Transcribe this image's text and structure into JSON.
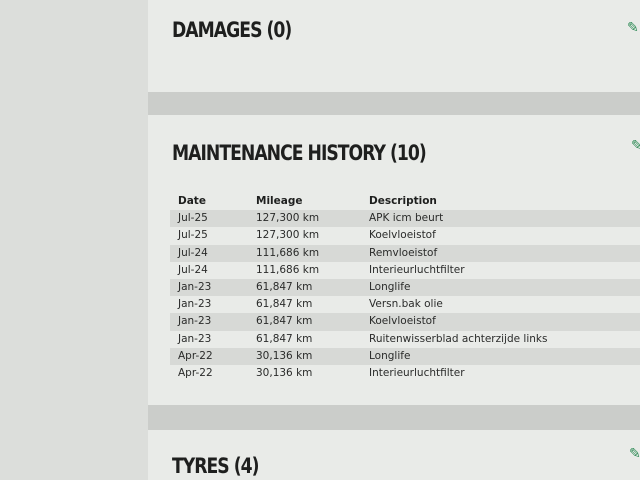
{
  "sections": {
    "damages": {
      "title": "DAMAGES (0)"
    },
    "maintenance": {
      "title": "MAINTENANCE HISTORY (10)",
      "columns": [
        "Date",
        "Mileage",
        "Description"
      ],
      "rows": [
        [
          "Jul-25",
          "127,300 km",
          "APK icm beurt"
        ],
        [
          "Jul-25",
          "127,300 km",
          "Koelvloeistof"
        ],
        [
          "Jul-24",
          "111,686 km",
          "Remvloeistof"
        ],
        [
          "Jul-24",
          "111,686 km",
          "Interieurluchtfilter"
        ],
        [
          "Jan-23",
          "61,847 km",
          "Longlife"
        ],
        [
          "Jan-23",
          "61,847 km",
          "Versn.bak olie"
        ],
        [
          "Jan-23",
          "61,847 km",
          "Koelvloeistof"
        ],
        [
          "Jan-23",
          "61,847 km",
          "Ruitenwisserblad achterzijde links"
        ],
        [
          "Apr-22",
          "30,136 km",
          "Longlife"
        ],
        [
          "Apr-22",
          "30,136 km",
          "Interieurluchtfilter"
        ]
      ]
    },
    "tyres": {
      "title": "TYRES (4)"
    }
  },
  "icons": [
    "edit-icon",
    "edit-icon",
    "edit-icon"
  ],
  "colors": {
    "accent": "#2d8a55"
  }
}
